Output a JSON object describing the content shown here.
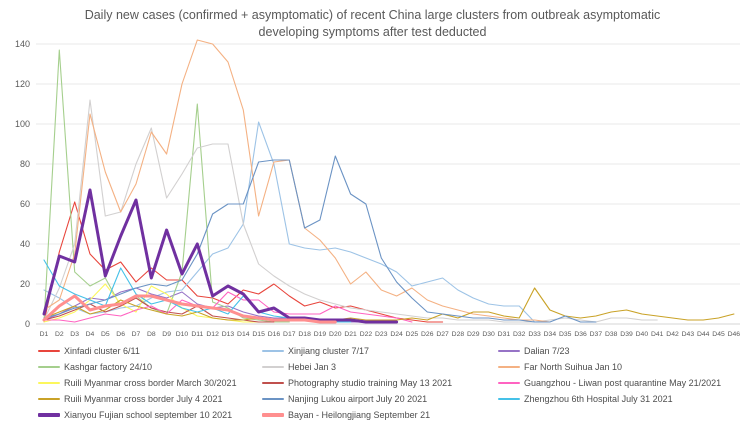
{
  "title": "Daily new cases (confirmed + asymptomatic) of recent China large clusters from outbreak asymptomatic developing symptoms after test deducted",
  "chart_data": {
    "type": "line",
    "x_labels": [
      "D1",
      "D2",
      "D3",
      "D4",
      "D5",
      "D6",
      "D7",
      "D8",
      "D9",
      "D10",
      "D11",
      "D12",
      "D13",
      "D14",
      "D15",
      "D16",
      "D17",
      "D18",
      "D19",
      "D20",
      "D21",
      "D22",
      "D23",
      "D24",
      "D25",
      "D26",
      "D27",
      "D28",
      "D29",
      "D30",
      "D31",
      "D32",
      "D33",
      "D34",
      "D35",
      "D36",
      "D37",
      "D38",
      "D39",
      "D40",
      "D41",
      "D42",
      "D43",
      "D44",
      "D45",
      "D46"
    ],
    "ylim": [
      0,
      140
    ],
    "y_ticks": [
      0,
      20,
      40,
      60,
      80,
      100,
      120,
      140
    ],
    "grid": true,
    "legend_position": "bottom",
    "axis_text_color": "#595959",
    "gridline_color": "#e9e9e9",
    "axisline_color": "#d6d6d6",
    "series": [
      {
        "name": "Xinfadi cluster 6/11",
        "color": "#e8453c",
        "width": 1.1,
        "values": [
          1,
          36,
          61,
          35,
          27,
          31,
          21,
          28,
          22,
          22,
          14,
          13,
          10,
          17,
          15,
          20,
          14,
          9,
          11,
          8,
          9,
          7,
          5,
          3,
          2,
          1,
          1,
          null,
          null,
          null,
          null,
          null,
          null,
          null,
          null,
          null,
          null,
          null,
          null,
          null,
          null,
          null,
          null,
          null,
          null,
          null
        ]
      },
      {
        "name": "Xinjiang cluster 7/17",
        "color": "#9dc3e6",
        "width": 1.1,
        "values": [
          17,
          13,
          8,
          5,
          6,
          8,
          9,
          13,
          16,
          17,
          26,
          35,
          38,
          50,
          101,
          80,
          40,
          38,
          37,
          38,
          36,
          33,
          30,
          26,
          19,
          21,
          23,
          17,
          13,
          10,
          9,
          9,
          1,
          null,
          null,
          null,
          null,
          null,
          null,
          null,
          null,
          null,
          null,
          null,
          null,
          null
        ]
      },
      {
        "name": "Dalian 7/23",
        "color": "#9673c6",
        "width": 1.1,
        "values": [
          2,
          5,
          9,
          13,
          12,
          16,
          18,
          15,
          13,
          16,
          10,
          8,
          9,
          6,
          4,
          3,
          3,
          2,
          2,
          1,
          1,
          1,
          null,
          null,
          null,
          null,
          null,
          null,
          null,
          null,
          null,
          null,
          null,
          null,
          null,
          null,
          null,
          null,
          null,
          null,
          null,
          null,
          null,
          null,
          null,
          null
        ]
      },
      {
        "name": "Kashgar factory 24/10",
        "color": "#a5cf8d",
        "width": 1.1,
        "values": [
          1,
          137,
          26,
          19,
          23,
          9,
          14,
          8,
          5,
          26,
          110,
          11,
          8,
          3,
          2,
          1,
          1,
          null,
          null,
          null,
          null,
          null,
          null,
          null,
          null,
          null,
          null,
          null,
          null,
          null,
          null,
          null,
          null,
          null,
          null,
          null,
          null,
          null,
          null,
          null,
          null,
          null,
          null,
          null,
          null,
          null
        ]
      },
      {
        "name": "Hebei Jan 3",
        "color": "#d2d0d0",
        "width": 1.1,
        "values": [
          2,
          18,
          40,
          112,
          54,
          56,
          80,
          98,
          63,
          75,
          88,
          90,
          90,
          50,
          30,
          24,
          19,
          15,
          12,
          10,
          8,
          7,
          6,
          5,
          4,
          3,
          3,
          2,
          2,
          2,
          1,
          1,
          1,
          2,
          3,
          2,
          1,
          3,
          3,
          2,
          2,
          null,
          null,
          null,
          null,
          null
        ]
      },
      {
        "name": "Far North Suihua Jan 10",
        "color": "#f4b183",
        "width": 1.1,
        "values": [
          7,
          12,
          35,
          105,
          76,
          56,
          70,
          96,
          85,
          120,
          142,
          140,
          131,
          107,
          54,
          81,
          82,
          48,
          42,
          33,
          20,
          26,
          17,
          14,
          18,
          12,
          9,
          7,
          5,
          4,
          3,
          2,
          2,
          1,
          null,
          null,
          null,
          null,
          null,
          null,
          null,
          null,
          null,
          null,
          null,
          null
        ]
      },
      {
        "name": "Ruili Myanmar cross border March 30/2021",
        "color": "#fcf75c",
        "width": 1.1,
        "values": [
          1,
          3,
          6,
          12,
          20,
          10,
          6,
          19,
          15,
          8,
          4,
          3,
          2,
          1,
          1,
          1,
          null,
          null,
          null,
          null,
          null,
          null,
          null,
          null,
          null,
          null,
          null,
          null,
          null,
          null,
          null,
          null,
          null,
          null,
          null,
          null,
          null,
          null,
          null,
          null,
          null,
          null,
          null,
          null,
          null,
          null
        ]
      },
      {
        "name": "Photography studio training May 13 2021",
        "color": "#c0504d",
        "width": 1.1,
        "values": [
          2,
          4,
          7,
          10,
          6,
          9,
          13,
          8,
          6,
          5,
          9,
          4,
          3,
          2,
          1,
          1,
          null,
          null,
          null,
          null,
          null,
          null,
          null,
          null,
          null,
          null,
          null,
          null,
          null,
          null,
          null,
          null,
          null,
          null,
          null,
          null,
          null,
          null,
          null,
          null,
          null,
          null,
          null,
          null,
          null,
          null
        ]
      },
      {
        "name": "Guangzhou - Liwan post quarantine May 21/2021",
        "color": "#ff63c1",
        "width": 1.1,
        "values": [
          2,
          2,
          1,
          3,
          5,
          4,
          7,
          9,
          5,
          12,
          9,
          8,
          16,
          12,
          12,
          6,
          5,
          5,
          5,
          9,
          6,
          5,
          4,
          3,
          1,
          null,
          null,
          null,
          null,
          null,
          null,
          null,
          null,
          null,
          null,
          null,
          null,
          null,
          null,
          null,
          null,
          null,
          null,
          null,
          null,
          null
        ]
      },
      {
        "name": "Ruili Myanmar cross border July 4 2021",
        "color": "#c9a227",
        "width": 1.1,
        "values": [
          3,
          6,
          9,
          5,
          7,
          12,
          9,
          7,
          5,
          4,
          6,
          3,
          2,
          2,
          3,
          2,
          2,
          3,
          2,
          2,
          3,
          2,
          2,
          2,
          3,
          2,
          5,
          3,
          6,
          6,
          4,
          3,
          18,
          7,
          4,
          3,
          4,
          6,
          7,
          5,
          4,
          3,
          2,
          2,
          3,
          5
        ]
      },
      {
        "name": "Nanjing Lukou airport July 20 2021",
        "color": "#6b93c4",
        "width": 1.1,
        "values": [
          3,
          5,
          8,
          10,
          12,
          15,
          18,
          20,
          19,
          22,
          35,
          55,
          60,
          60,
          81,
          82,
          82,
          48,
          52,
          84,
          65,
          60,
          33,
          21,
          13,
          6,
          5,
          4,
          3,
          3,
          2,
          2,
          1,
          1,
          4,
          1,
          1,
          null,
          null,
          null,
          null,
          null,
          null,
          null,
          null,
          null
        ]
      },
      {
        "name": "Zhengzhou 6th Hospital July 31 2021",
        "color": "#45c1e8",
        "width": 1.1,
        "values": [
          32,
          19,
          15,
          12,
          9,
          28,
          15,
          10,
          12,
          8,
          6,
          8,
          5,
          14,
          6,
          4,
          3,
          2,
          2,
          1,
          1,
          null,
          null,
          null,
          null,
          null,
          null,
          null,
          null,
          null,
          null,
          null,
          null,
          null,
          null,
          null,
          null,
          null,
          null,
          null,
          null,
          null,
          null,
          null,
          null,
          null
        ]
      },
      {
        "name": "Xianyou Fujian school september 10 2021",
        "color": "#7030a0",
        "width": 3,
        "values": [
          5,
          34,
          31,
          67,
          24,
          44,
          62,
          23,
          47,
          25,
          40,
          14,
          19,
          15,
          6,
          8,
          3,
          3,
          2,
          2,
          2,
          1,
          1,
          1,
          null,
          null,
          null,
          null,
          null,
          null,
          null,
          null,
          null,
          null,
          null,
          null,
          null,
          null,
          null,
          null,
          null,
          null,
          null,
          null,
          null,
          null
        ]
      },
      {
        "name": "Bayan - Heilongjiang September 21",
        "color": "#ff8f8f",
        "width": 3,
        "values": [
          2,
          9,
          14,
          7,
          9,
          10,
          14,
          14,
          12,
          10,
          9,
          8,
          7,
          4,
          3,
          2,
          2,
          2,
          1,
          1,
          null,
          null,
          null,
          null,
          null,
          null,
          null,
          null,
          null,
          null,
          null,
          null,
          null,
          null,
          null,
          null,
          null,
          null,
          null,
          null,
          null,
          null,
          null,
          null,
          null,
          null
        ]
      }
    ],
    "legend_order": [
      0,
      1,
      2,
      3,
      4,
      5,
      6,
      7,
      8,
      9,
      10,
      11,
      12,
      13
    ]
  }
}
